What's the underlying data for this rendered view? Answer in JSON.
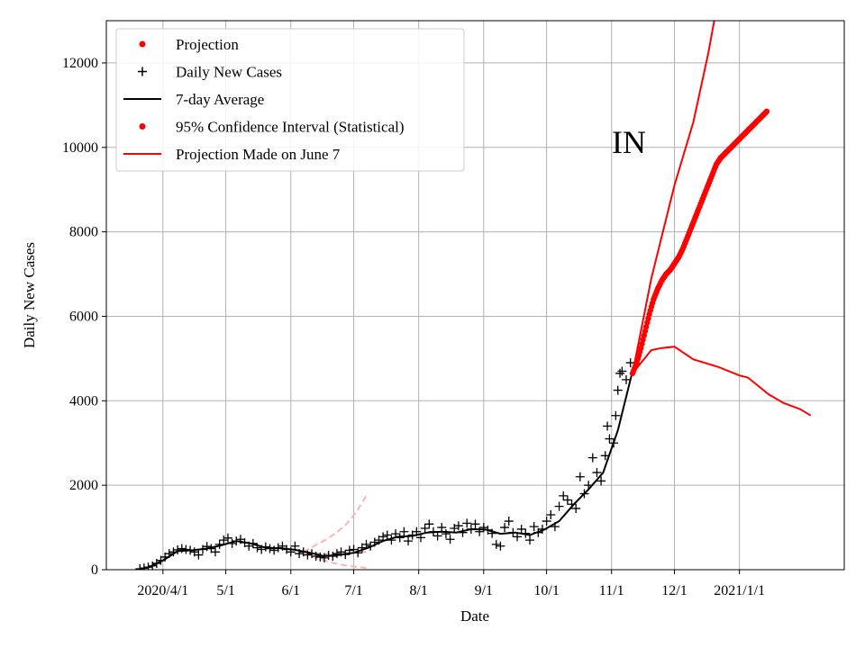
{
  "chart_data": {
    "type": "line",
    "state_label": "IN",
    "xlabel": "Date",
    "ylabel": "Daily New Cases",
    "grid": true,
    "legend_placement": "top-left",
    "x_start": "2020-03-05",
    "x_end": "2021-02-20",
    "ylim": [
      0,
      13000
    ],
    "x_ticks": [
      {
        "date": "2020-04-01",
        "label": "2020/4/1"
      },
      {
        "date": "2020-05-01",
        "label": "5/1"
      },
      {
        "date": "2020-06-01",
        "label": "6/1"
      },
      {
        "date": "2020-07-01",
        "label": "7/1"
      },
      {
        "date": "2020-08-01",
        "label": "8/1"
      },
      {
        "date": "2020-09-01",
        "label": "9/1"
      },
      {
        "date": "2020-10-01",
        "label": "10/1"
      },
      {
        "date": "2020-11-01",
        "label": "11/1"
      },
      {
        "date": "2020-12-01",
        "label": "12/1"
      },
      {
        "date": "2021-01-01",
        "label": "2021/1/1"
      }
    ],
    "y_ticks": [
      0,
      2000,
      4000,
      6000,
      8000,
      10000,
      12000
    ],
    "legend": [
      {
        "label": "Projection",
        "style": "dot",
        "color": "#ff0000"
      },
      {
        "label": "Daily New Cases",
        "style": "plus",
        "color": "#000000"
      },
      {
        "label": "7-day Average",
        "style": "line",
        "color": "#000000"
      },
      {
        "label": "95% Confidence Interval (Statistical)",
        "style": "dot",
        "color": "#ff0000"
      },
      {
        "label": "Projection Made on June 7",
        "style": "line",
        "color": "#ff0000"
      }
    ],
    "colors": {
      "projection": "#ff0000",
      "daily": "#000000",
      "average": "#000000",
      "june7": "#ffb3b3"
    },
    "series": {
      "daily_new_cases": [
        [
          "2020-03-21",
          20
        ],
        [
          "2020-03-23",
          40
        ],
        [
          "2020-03-25",
          60
        ],
        [
          "2020-03-27",
          90
        ],
        [
          "2020-03-29",
          150
        ],
        [
          "2020-03-31",
          220
        ],
        [
          "2020-04-02",
          300
        ],
        [
          "2020-04-04",
          380
        ],
        [
          "2020-04-06",
          420
        ],
        [
          "2020-04-08",
          470
        ],
        [
          "2020-04-10",
          500
        ],
        [
          "2020-04-12",
          480
        ],
        [
          "2020-04-14",
          460
        ],
        [
          "2020-04-16",
          420
        ],
        [
          "2020-04-18",
          350
        ],
        [
          "2020-04-20",
          480
        ],
        [
          "2020-04-22",
          550
        ],
        [
          "2020-04-24",
          500
        ],
        [
          "2020-04-26",
          420
        ],
        [
          "2020-04-28",
          600
        ],
        [
          "2020-04-30",
          700
        ],
        [
          "2020-05-02",
          750
        ],
        [
          "2020-05-04",
          620
        ],
        [
          "2020-05-06",
          680
        ],
        [
          "2020-05-08",
          720
        ],
        [
          "2020-05-10",
          640
        ],
        [
          "2020-05-12",
          560
        ],
        [
          "2020-05-14",
          620
        ],
        [
          "2020-05-16",
          520
        ],
        [
          "2020-05-18",
          480
        ],
        [
          "2020-05-20",
          540
        ],
        [
          "2020-05-22",
          500
        ],
        [
          "2020-05-24",
          460
        ],
        [
          "2020-05-26",
          520
        ],
        [
          "2020-05-28",
          560
        ],
        [
          "2020-05-30",
          480
        ],
        [
          "2020-06-01",
          420
        ],
        [
          "2020-06-03",
          560
        ],
        [
          "2020-06-05",
          380
        ],
        [
          "2020-06-07",
          420
        ],
        [
          "2020-06-09",
          350
        ],
        [
          "2020-06-11",
          380
        ],
        [
          "2020-06-13",
          320
        ],
        [
          "2020-06-15",
          300
        ],
        [
          "2020-06-17",
          280
        ],
        [
          "2020-06-19",
          340
        ],
        [
          "2020-06-21",
          320
        ],
        [
          "2020-06-23",
          380
        ],
        [
          "2020-06-25",
          420
        ],
        [
          "2020-06-27",
          360
        ],
        [
          "2020-06-29",
          460
        ],
        [
          "2020-07-01",
          480
        ],
        [
          "2020-07-03",
          400
        ],
        [
          "2020-07-05",
          520
        ],
        [
          "2020-07-07",
          600
        ],
        [
          "2020-07-09",
          560
        ],
        [
          "2020-07-11",
          650
        ],
        [
          "2020-07-13",
          700
        ],
        [
          "2020-07-15",
          780
        ],
        [
          "2020-07-17",
          820
        ],
        [
          "2020-07-19",
          700
        ],
        [
          "2020-07-21",
          850
        ],
        [
          "2020-07-23",
          760
        ],
        [
          "2020-07-25",
          900
        ],
        [
          "2020-07-27",
          680
        ],
        [
          "2020-07-29",
          820
        ],
        [
          "2020-07-31",
          900
        ],
        [
          "2020-08-02",
          760
        ],
        [
          "2020-08-04",
          980
        ],
        [
          "2020-08-06",
          1080
        ],
        [
          "2020-08-08",
          900
        ],
        [
          "2020-08-10",
          800
        ],
        [
          "2020-08-12",
          1000
        ],
        [
          "2020-08-14",
          850
        ],
        [
          "2020-08-16",
          720
        ],
        [
          "2020-08-18",
          980
        ],
        [
          "2020-08-20",
          1040
        ],
        [
          "2020-08-22",
          880
        ],
        [
          "2020-08-24",
          1100
        ],
        [
          "2020-08-26",
          960
        ],
        [
          "2020-08-28",
          1080
        ],
        [
          "2020-08-30",
          900
        ],
        [
          "2020-09-01",
          1000
        ],
        [
          "2020-09-03",
          940
        ],
        [
          "2020-09-05",
          860
        ],
        [
          "2020-09-07",
          600
        ],
        [
          "2020-09-09",
          560
        ],
        [
          "2020-09-11",
          1000
        ],
        [
          "2020-09-13",
          1150
        ],
        [
          "2020-09-15",
          880
        ],
        [
          "2020-09-17",
          780
        ],
        [
          "2020-09-19",
          960
        ],
        [
          "2020-09-21",
          860
        ],
        [
          "2020-09-23",
          700
        ],
        [
          "2020-09-25",
          1020
        ],
        [
          "2020-09-27",
          880
        ],
        [
          "2020-09-29",
          960
        ],
        [
          "2020-10-01",
          1150
        ],
        [
          "2020-10-03",
          1300
        ],
        [
          "2020-10-05",
          1020
        ],
        [
          "2020-10-07",
          1500
        ],
        [
          "2020-10-09",
          1750
        ],
        [
          "2020-10-11",
          1650
        ],
        [
          "2020-10-13",
          1550
        ],
        [
          "2020-10-15",
          1450
        ],
        [
          "2020-10-17",
          2200
        ],
        [
          "2020-10-19",
          1800
        ],
        [
          "2020-10-21",
          2000
        ],
        [
          "2020-10-23",
          2650
        ],
        [
          "2020-10-25",
          2300
        ],
        [
          "2020-10-27",
          2100
        ],
        [
          "2020-10-29",
          2700
        ],
        [
          "2020-10-30",
          3400
        ],
        [
          "2020-10-31",
          3100
        ],
        [
          "2020-11-02",
          3000
        ],
        [
          "2020-11-03",
          3650
        ],
        [
          "2020-11-04",
          4250
        ],
        [
          "2020-11-05",
          4650
        ],
        [
          "2020-11-06",
          4700
        ],
        [
          "2020-11-08",
          4500
        ],
        [
          "2020-11-10",
          4900
        ]
      ],
      "seven_day_average": [
        [
          "2020-03-19",
          0
        ],
        [
          "2020-03-25",
          50
        ],
        [
          "2020-04-01",
          220
        ],
        [
          "2020-04-08",
          440
        ],
        [
          "2020-04-15",
          460
        ],
        [
          "2020-04-22",
          500
        ],
        [
          "2020-04-29",
          580
        ],
        [
          "2020-05-06",
          680
        ],
        [
          "2020-05-13",
          620
        ],
        [
          "2020-05-20",
          520
        ],
        [
          "2020-05-27",
          510
        ],
        [
          "2020-06-03",
          470
        ],
        [
          "2020-06-10",
          400
        ],
        [
          "2020-06-17",
          320
        ],
        [
          "2020-06-24",
          350
        ],
        [
          "2020-07-01",
          400
        ],
        [
          "2020-07-08",
          520
        ],
        [
          "2020-07-15",
          680
        ],
        [
          "2020-07-22",
          780
        ],
        [
          "2020-07-29",
          800
        ],
        [
          "2020-08-05",
          880
        ],
        [
          "2020-08-12",
          900
        ],
        [
          "2020-08-19",
          880
        ],
        [
          "2020-08-26",
          960
        ],
        [
          "2020-09-02",
          950
        ],
        [
          "2020-09-09",
          850
        ],
        [
          "2020-09-16",
          880
        ],
        [
          "2020-09-23",
          820
        ],
        [
          "2020-09-30",
          950
        ],
        [
          "2020-10-07",
          1150
        ],
        [
          "2020-10-14",
          1550
        ],
        [
          "2020-10-21",
          1900
        ],
        [
          "2020-10-28",
          2300
        ],
        [
          "2020-11-04",
          3300
        ],
        [
          "2020-11-11",
          4700
        ]
      ],
      "projection": [
        [
          "2020-11-11",
          4650
        ],
        [
          "2020-11-13",
          4900
        ],
        [
          "2020-11-15",
          5250
        ],
        [
          "2020-11-17",
          5650
        ],
        [
          "2020-11-19",
          6050
        ],
        [
          "2020-11-21",
          6400
        ],
        [
          "2020-11-23",
          6650
        ],
        [
          "2020-11-25",
          6850
        ],
        [
          "2020-11-27",
          7000
        ],
        [
          "2020-11-29",
          7100
        ],
        [
          "2020-12-01",
          7250
        ],
        [
          "2020-12-03",
          7400
        ],
        [
          "2020-12-05",
          7600
        ],
        [
          "2020-12-07",
          7850
        ],
        [
          "2020-12-09",
          8100
        ],
        [
          "2020-12-11",
          8350
        ],
        [
          "2020-12-13",
          8600
        ],
        [
          "2020-12-15",
          8850
        ],
        [
          "2020-12-17",
          9100
        ],
        [
          "2020-12-19",
          9350
        ],
        [
          "2020-12-21",
          9600
        ],
        [
          "2020-12-23",
          9750
        ],
        [
          "2020-12-25",
          9850
        ],
        [
          "2020-12-27",
          9950
        ],
        [
          "2020-12-29",
          10050
        ],
        [
          "2020-12-31",
          10150
        ],
        [
          "2021-01-02",
          10250
        ],
        [
          "2021-01-04",
          10350
        ],
        [
          "2021-01-06",
          10450
        ],
        [
          "2021-01-08",
          10550
        ],
        [
          "2021-01-10",
          10650
        ],
        [
          "2021-01-12",
          10750
        ],
        [
          "2021-01-14",
          10850
        ]
      ],
      "ci_upper": [
        [
          "2020-11-11",
          4650
        ],
        [
          "2020-11-20",
          6900
        ],
        [
          "2020-12-01",
          9100
        ],
        [
          "2020-12-10",
          10600
        ],
        [
          "2020-12-17",
          12200
        ],
        [
          "2020-12-20",
          13000
        ]
      ],
      "ci_lower": [
        [
          "2020-11-11",
          4650
        ],
        [
          "2020-11-20",
          5200
        ],
        [
          "2020-11-25",
          5250
        ],
        [
          "2020-12-01",
          5280
        ],
        [
          "2020-12-10",
          4980
        ],
        [
          "2020-12-22",
          4800
        ],
        [
          "2021-01-01",
          4600
        ],
        [
          "2021-01-05",
          4550
        ],
        [
          "2021-01-10",
          4350
        ],
        [
          "2021-01-15",
          4150
        ],
        [
          "2021-01-22",
          3950
        ],
        [
          "2021-01-30",
          3800
        ],
        [
          "2021-02-04",
          3650
        ]
      ],
      "june7_projection": [
        [
          "2020-06-07",
          420
        ],
        [
          "2020-06-12",
          390
        ],
        [
          "2020-06-17",
          380
        ],
        [
          "2020-06-22",
          385
        ],
        [
          "2020-06-27",
          395
        ],
        [
          "2020-07-02",
          410
        ],
        [
          "2020-07-07",
          420
        ]
      ],
      "june7_upper": [
        [
          "2020-06-07",
          420
        ],
        [
          "2020-06-12",
          560
        ],
        [
          "2020-06-17",
          690
        ],
        [
          "2020-06-22",
          850
        ],
        [
          "2020-06-27",
          1050
        ],
        [
          "2020-07-02",
          1350
        ],
        [
          "2020-07-07",
          1750
        ]
      ],
      "june7_lower": [
        [
          "2020-06-07",
          420
        ],
        [
          "2020-06-12",
          300
        ],
        [
          "2020-06-17",
          220
        ],
        [
          "2020-06-22",
          150
        ],
        [
          "2020-06-27",
          100
        ],
        [
          "2020-07-02",
          70
        ],
        [
          "2020-07-07",
          40
        ]
      ]
    }
  }
}
